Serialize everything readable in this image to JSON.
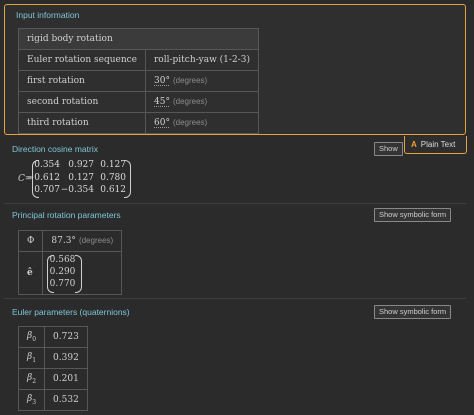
{
  "input": {
    "title": "Input information",
    "header": "rigid body rotation",
    "rows": [
      {
        "label": "Euler rotation sequence",
        "value": "roll-pitch-yaw (1-2-3)",
        "unit": ""
      },
      {
        "label": "first rotation",
        "value": "30°",
        "unit": "(degrees)"
      },
      {
        "label": "second rotation",
        "value": "45°",
        "unit": "(degrees)"
      },
      {
        "label": "third rotation",
        "value": "60°",
        "unit": "(degrees)"
      }
    ]
  },
  "dcm": {
    "title": "Direction cosine matrix",
    "show_label": "Show",
    "popup": {
      "icon_letter": "A",
      "label": "Plain Text"
    },
    "symbol": "C",
    "equals": "=",
    "matrix": [
      [
        "0.354",
        "0.927",
        "0.127"
      ],
      [
        "−0.612",
        "0.127",
        "0.780"
      ],
      [
        "0.707",
        "−0.354",
        "0.612"
      ]
    ]
  },
  "principal": {
    "title": "Principal rotation parameters",
    "button": "Show symbolic form",
    "phi_symbol": "Φ",
    "phi_value": "87.3°",
    "phi_unit": "(degrees)",
    "e_symbol": "ê",
    "e_vector": [
      "0.568",
      "0.290",
      "0.770"
    ]
  },
  "euler": {
    "title": "Euler parameters (quaternions)",
    "button": "Show symbolic form",
    "rows": [
      {
        "sym": "β",
        "sub": "0",
        "value": "0.723"
      },
      {
        "sym": "β",
        "sub": "1",
        "value": "0.392"
      },
      {
        "sym": "β",
        "sub": "2",
        "value": "0.201"
      },
      {
        "sym": "β",
        "sub": "3",
        "value": "0.532"
      }
    ]
  }
}
